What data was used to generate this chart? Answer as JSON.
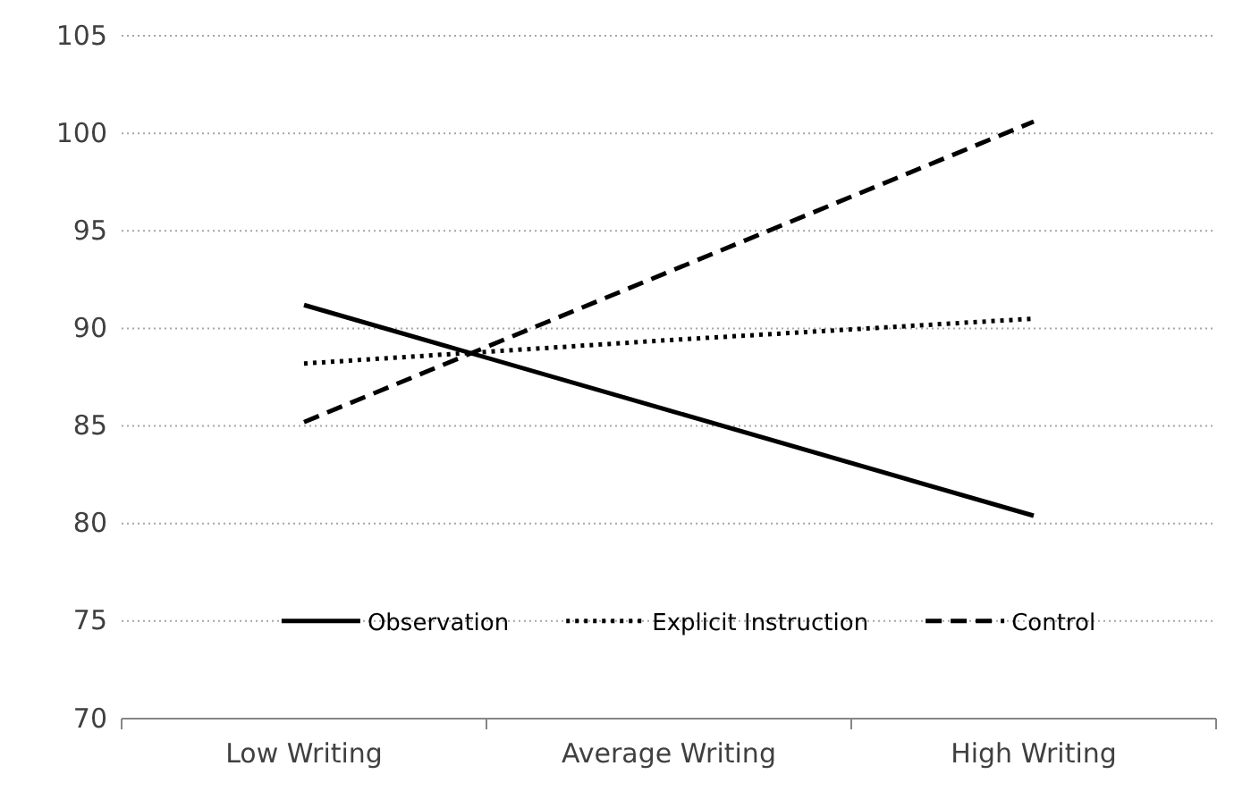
{
  "chart_data": {
    "type": "line",
    "categories": [
      "Low Writing",
      "Average Writing",
      "High Writing"
    ],
    "series": [
      {
        "name": "Observation",
        "color": "#000000",
        "line_style": "solid",
        "values": [
          91.2,
          85.8,
          80.4
        ]
      },
      {
        "name": "Explicit Instruction",
        "color": "#000000",
        "line_style": "dotted",
        "values": [
          88.2,
          89.4,
          90.5
        ]
      },
      {
        "name": "Control",
        "color": "#000000",
        "line_style": "dashed",
        "values": [
          85.2,
          92.9,
          100.6
        ]
      }
    ],
    "ylim": [
      70,
      105
    ],
    "yticks": [
      70,
      75,
      80,
      85,
      90,
      95,
      100,
      105
    ],
    "grid": "y",
    "legend": "bottom",
    "marker": "none"
  }
}
